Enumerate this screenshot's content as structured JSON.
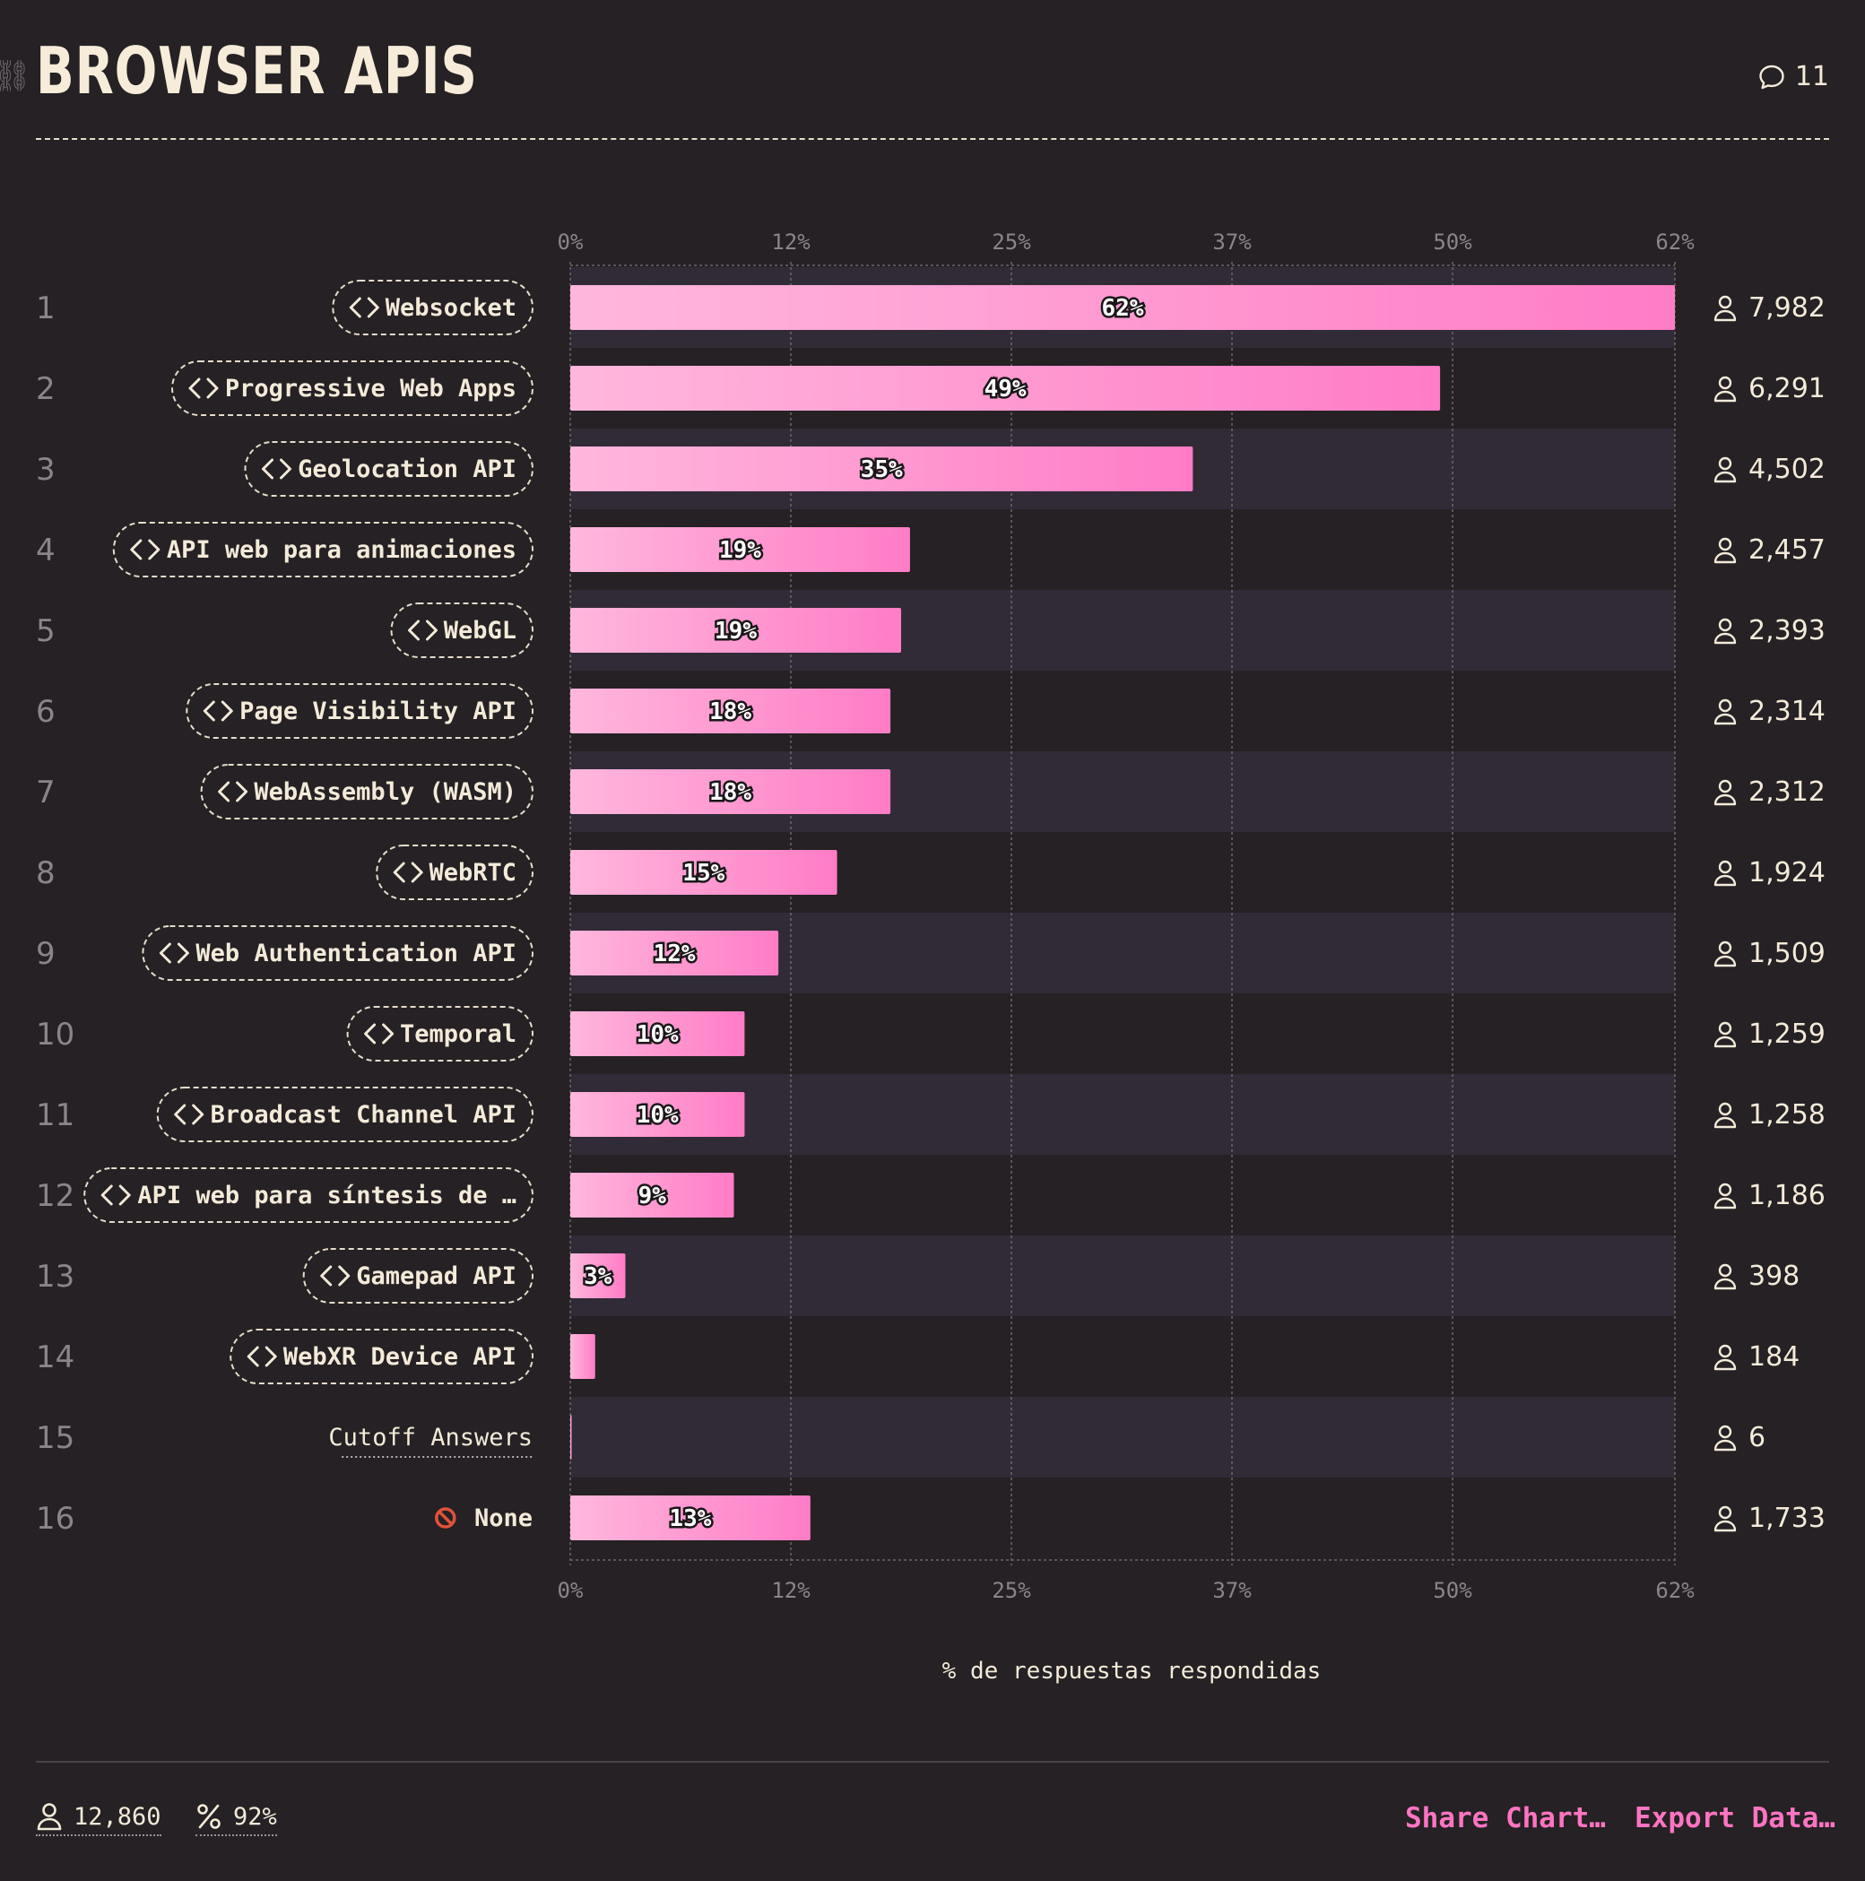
{
  "title": "BROWSER APIS",
  "comments": {
    "count": "11",
    "icon": "speech-bubble-icon"
  },
  "colors": {
    "background": "#252124",
    "bar_gradient_start": "#ffb7dd",
    "bar_gradient_end": "#ff7cc6",
    "stripe": "#312b37",
    "text": "#f3ead9",
    "muted": "#8c8588",
    "link": "#ff74c2",
    "none_icon": "#e0523a"
  },
  "chart_data": {
    "type": "bar",
    "orientation": "horizontal",
    "xlabel": "% de respuestas respondidas",
    "xlim": [
      0,
      62.1
    ],
    "x_ticks": [
      0,
      12.4,
      24.8,
      37.2,
      49.6,
      62.1
    ],
    "x_tick_labels": [
      "0%",
      "12%",
      "25%",
      "37%",
      "50%",
      "62%"
    ],
    "grid": true,
    "rows": [
      {
        "rank": "1",
        "label": "Websocket",
        "kind": "feature",
        "value": 62.1,
        "value_label": "62%",
        "count": "7,982"
      },
      {
        "rank": "2",
        "label": "Progressive Web Apps",
        "kind": "feature",
        "value": 48.9,
        "value_label": "49%",
        "count": "6,291"
      },
      {
        "rank": "3",
        "label": "Geolocation API",
        "kind": "feature",
        "value": 35.0,
        "value_label": "35%",
        "count": "4,502"
      },
      {
        "rank": "4",
        "label": "API web para animaciones",
        "kind": "feature",
        "value": 19.1,
        "value_label": "19%",
        "count": "2,457"
      },
      {
        "rank": "5",
        "label": "WebGL",
        "kind": "feature",
        "value": 18.6,
        "value_label": "19%",
        "count": "2,393"
      },
      {
        "rank": "6",
        "label": "Page Visibility API",
        "kind": "feature",
        "value": 18.0,
        "value_label": "18%",
        "count": "2,314"
      },
      {
        "rank": "7",
        "label": "WebAssembly (WASM)",
        "kind": "feature",
        "value": 18.0,
        "value_label": "18%",
        "count": "2,312"
      },
      {
        "rank": "8",
        "label": "WebRTC",
        "kind": "feature",
        "value": 15.0,
        "value_label": "15%",
        "count": "1,924"
      },
      {
        "rank": "9",
        "label": "Web Authentication API",
        "kind": "feature",
        "value": 11.7,
        "value_label": "12%",
        "count": "1,509"
      },
      {
        "rank": "10",
        "label": "Temporal",
        "kind": "feature",
        "value": 9.8,
        "value_label": "10%",
        "count": "1,259"
      },
      {
        "rank": "11",
        "label": "Broadcast Channel API",
        "kind": "feature",
        "value": 9.8,
        "value_label": "10%",
        "count": "1,258"
      },
      {
        "rank": "12",
        "label": "API web para síntesis de …",
        "kind": "feature",
        "value": 9.2,
        "value_label": "9%",
        "count": "1,186"
      },
      {
        "rank": "13",
        "label": "Gamepad API",
        "kind": "feature",
        "value": 3.1,
        "value_label": "3%",
        "count": "398"
      },
      {
        "rank": "14",
        "label": "WebXR Device API",
        "kind": "feature",
        "value": 1.4,
        "value_label": "",
        "count": "184"
      },
      {
        "rank": "15",
        "label": "Cutoff Answers",
        "kind": "cutoff",
        "value": 0.05,
        "value_label": "",
        "count": "6"
      },
      {
        "rank": "16",
        "label": "None",
        "kind": "none",
        "value": 13.5,
        "value_label": "13%",
        "count": "1,733"
      }
    ]
  },
  "footer": {
    "respondents": "12,860",
    "completion": "92%",
    "share_label": "Share Chart…",
    "export_label": "Export Data…"
  }
}
